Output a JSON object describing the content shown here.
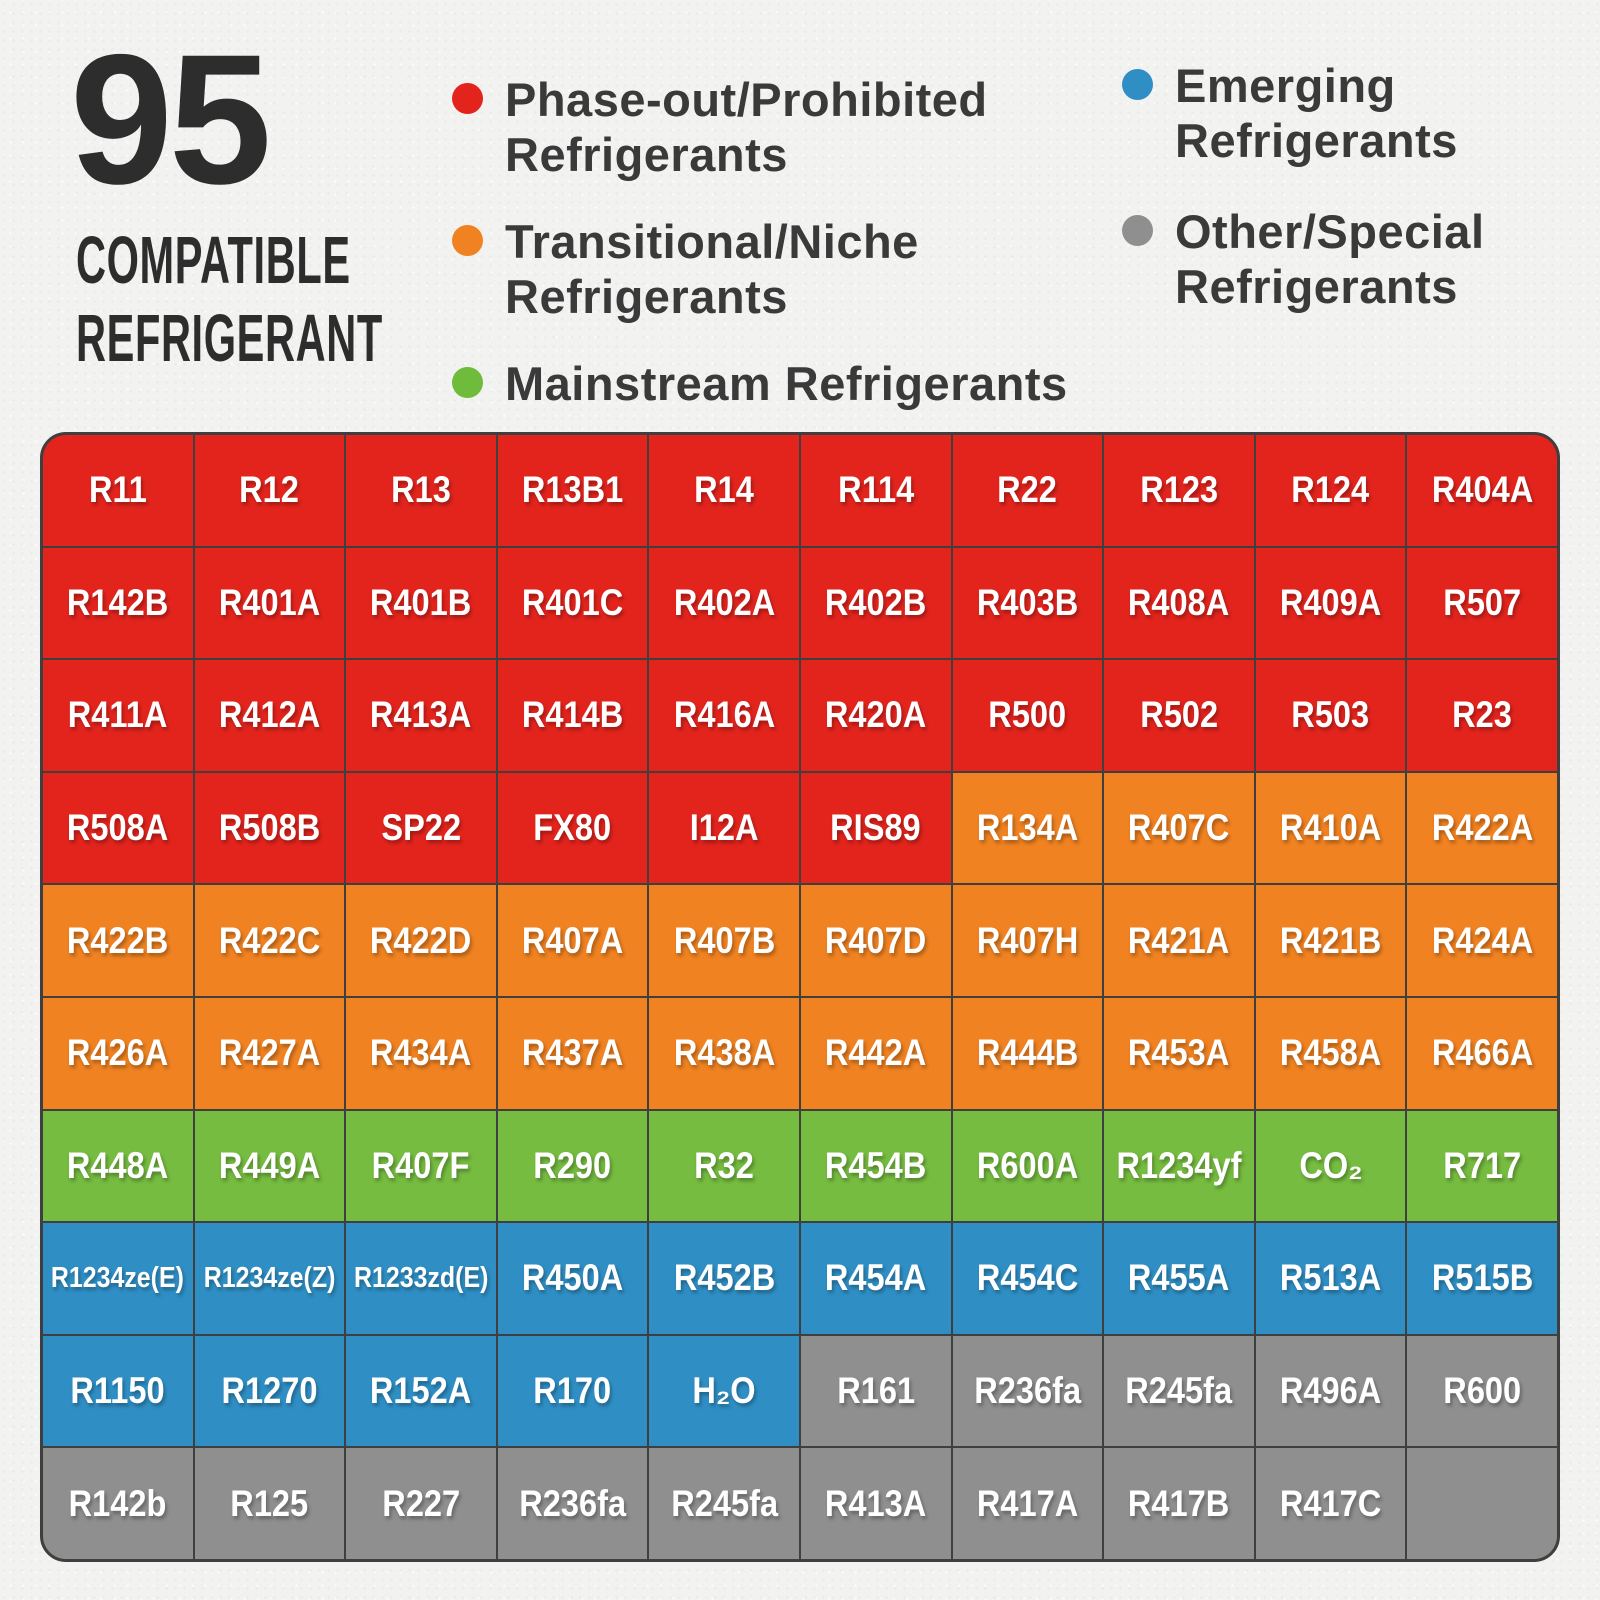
{
  "title": {
    "number": "95",
    "line1": "COMPATIBLE",
    "line2": "REFRIGERANT"
  },
  "legend": [
    {
      "key": "phase-out",
      "label": "Phase-out/Prohibited Refrigerants",
      "color": "#e3241d"
    },
    {
      "key": "transitional",
      "label": "Transitional/Niche Refrigerants",
      "color": "#f08221"
    },
    {
      "key": "mainstream",
      "label": "Mainstream Refrigerants",
      "color": "#6fbb3c"
    },
    {
      "key": "emerging",
      "label": "Emerging Refrigerants",
      "color": "#2f8fc5"
    },
    {
      "key": "other",
      "label": "Other/Special Refrigerants",
      "color": "#8f8f8f"
    }
  ],
  "category_colors": {
    "red": "#e3241d",
    "orange": "#f08221",
    "green": "#76bc40",
    "blue": "#2f8fc5",
    "gray": "#8f8f8f"
  },
  "grid": {
    "columns": 10,
    "rows": 10,
    "cells": [
      {
        "label": "R11",
        "category": "red"
      },
      {
        "label": "R12",
        "category": "red"
      },
      {
        "label": "R13",
        "category": "red"
      },
      {
        "label": "R13B1",
        "category": "red"
      },
      {
        "label": "R14",
        "category": "red"
      },
      {
        "label": "R114",
        "category": "red"
      },
      {
        "label": "R22",
        "category": "red"
      },
      {
        "label": "R123",
        "category": "red"
      },
      {
        "label": "R124",
        "category": "red"
      },
      {
        "label": "R404A",
        "category": "red"
      },
      {
        "label": "R142B",
        "category": "red"
      },
      {
        "label": "R401A",
        "category": "red"
      },
      {
        "label": "R401B",
        "category": "red"
      },
      {
        "label": "R401C",
        "category": "red"
      },
      {
        "label": "R402A",
        "category": "red"
      },
      {
        "label": "R402B",
        "category": "red"
      },
      {
        "label": "R403B",
        "category": "red"
      },
      {
        "label": "R408A",
        "category": "red"
      },
      {
        "label": "R409A",
        "category": "red"
      },
      {
        "label": "R507",
        "category": "red"
      },
      {
        "label": "R411A",
        "category": "red"
      },
      {
        "label": "R412A",
        "category": "red"
      },
      {
        "label": "R413A",
        "category": "red"
      },
      {
        "label": "R414B",
        "category": "red"
      },
      {
        "label": "R416A",
        "category": "red"
      },
      {
        "label": "R420A",
        "category": "red"
      },
      {
        "label": "R500",
        "category": "red"
      },
      {
        "label": "R502",
        "category": "red"
      },
      {
        "label": "R503",
        "category": "red"
      },
      {
        "label": "R23",
        "category": "red"
      },
      {
        "label": "R508A",
        "category": "red"
      },
      {
        "label": "R508B",
        "category": "red"
      },
      {
        "label": "SP22",
        "category": "red"
      },
      {
        "label": "FX80",
        "category": "red"
      },
      {
        "label": "I12A",
        "category": "red"
      },
      {
        "label": "RIS89",
        "category": "red"
      },
      {
        "label": "R134A",
        "category": "orange"
      },
      {
        "label": "R407C",
        "category": "orange"
      },
      {
        "label": "R410A",
        "category": "orange"
      },
      {
        "label": "R422A",
        "category": "orange"
      },
      {
        "label": "R422B",
        "category": "orange"
      },
      {
        "label": "R422C",
        "category": "orange"
      },
      {
        "label": "R422D",
        "category": "orange"
      },
      {
        "label": "R407A",
        "category": "orange"
      },
      {
        "label": "R407B",
        "category": "orange"
      },
      {
        "label": "R407D",
        "category": "orange"
      },
      {
        "label": "R407H",
        "category": "orange"
      },
      {
        "label": "R421A",
        "category": "orange"
      },
      {
        "label": "R421B",
        "category": "orange"
      },
      {
        "label": "R424A",
        "category": "orange"
      },
      {
        "label": "R426A",
        "category": "orange"
      },
      {
        "label": "R427A",
        "category": "orange"
      },
      {
        "label": "R434A",
        "category": "orange"
      },
      {
        "label": "R437A",
        "category": "orange"
      },
      {
        "label": "R438A",
        "category": "orange"
      },
      {
        "label": "R442A",
        "category": "orange"
      },
      {
        "label": "R444B",
        "category": "orange"
      },
      {
        "label": "R453A",
        "category": "orange"
      },
      {
        "label": "R458A",
        "category": "orange"
      },
      {
        "label": "R466A",
        "category": "orange"
      },
      {
        "label": "R448A",
        "category": "green"
      },
      {
        "label": "R449A",
        "category": "green"
      },
      {
        "label": "R407F",
        "category": "green"
      },
      {
        "label": "R290",
        "category": "green"
      },
      {
        "label": "R32",
        "category": "green"
      },
      {
        "label": "R454B",
        "category": "green"
      },
      {
        "label": "R600A",
        "category": "green"
      },
      {
        "label": "R1234yf",
        "category": "green"
      },
      {
        "label": "CO₂",
        "category": "green"
      },
      {
        "label": "R717",
        "category": "green"
      },
      {
        "label": "R1234ze(E)",
        "category": "blue"
      },
      {
        "label": "R1234ze(Z)",
        "category": "blue"
      },
      {
        "label": "R1233zd(E)",
        "category": "blue"
      },
      {
        "label": "R450A",
        "category": "blue"
      },
      {
        "label": "R452B",
        "category": "blue"
      },
      {
        "label": "R454A",
        "category": "blue"
      },
      {
        "label": "R454C",
        "category": "blue"
      },
      {
        "label": "R455A",
        "category": "blue"
      },
      {
        "label": "R513A",
        "category": "blue"
      },
      {
        "label": "R515B",
        "category": "blue"
      },
      {
        "label": "R1150",
        "category": "blue"
      },
      {
        "label": "R1270",
        "category": "blue"
      },
      {
        "label": "R152A",
        "category": "blue"
      },
      {
        "label": "R170",
        "category": "blue"
      },
      {
        "label": "H₂O",
        "category": "blue"
      },
      {
        "label": "R161",
        "category": "gray"
      },
      {
        "label": "R236fa",
        "category": "gray"
      },
      {
        "label": "R245fa",
        "category": "gray"
      },
      {
        "label": "R496A",
        "category": "gray"
      },
      {
        "label": "R600",
        "category": "gray"
      },
      {
        "label": "R142b",
        "category": "gray"
      },
      {
        "label": "R125",
        "category": "gray"
      },
      {
        "label": "R227",
        "category": "gray"
      },
      {
        "label": "R236fa",
        "category": "gray"
      },
      {
        "label": "R245fa",
        "category": "gray"
      },
      {
        "label": "R413A",
        "category": "gray"
      },
      {
        "label": "R417A",
        "category": "gray"
      },
      {
        "label": "R417B",
        "category": "gray"
      },
      {
        "label": "R417C",
        "category": "gray"
      },
      {
        "label": "",
        "category": "gray"
      }
    ]
  }
}
